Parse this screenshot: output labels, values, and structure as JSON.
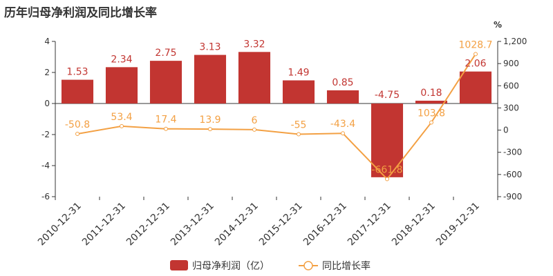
{
  "chart_data": {
    "type": "bar",
    "title": "历年归母净利润及同比增长率",
    "categories": [
      "2010-12-31",
      "2011-12-31",
      "2012-12-31",
      "2013-12-31",
      "2014-12-31",
      "2015-12-31",
      "2016-12-31",
      "2017-12-31",
      "2018-12-31",
      "2019-12-31"
    ],
    "series": [
      {
        "name": "归母净利润（亿）",
        "type": "bar",
        "axis": "left",
        "values": [
          1.53,
          2.34,
          2.75,
          3.13,
          3.32,
          1.49,
          0.85,
          -4.75,
          0.18,
          2.06
        ],
        "labels": [
          "1.53",
          "2.34",
          "2.75",
          "3.13",
          "3.32",
          "1.49",
          "0.85",
          "-4.75",
          "0.18",
          "2.06"
        ]
      },
      {
        "name": "同比增长率",
        "type": "line",
        "axis": "right",
        "values": [
          -50.8,
          53.4,
          17.4,
          13.9,
          6,
          -55,
          -43.4,
          -661.8,
          103.8,
          1028.7
        ],
        "labels": [
          "-50.8",
          "53.4",
          "17.4",
          "13.9",
          "6",
          "-55",
          "-43.4",
          "-661.8",
          "103.8",
          "1028.7"
        ]
      }
    ],
    "y_left": {
      "range": [
        -6,
        4
      ],
      "ticks": [
        "4",
        "2",
        "0",
        "-2",
        "-4",
        "-6"
      ]
    },
    "y_right": {
      "range": [
        -900,
        1200
      ],
      "unit": "%",
      "ticks": [
        "1,200",
        "900",
        "600",
        "300",
        "0",
        "-300",
        "-600",
        "-900"
      ]
    },
    "colors": {
      "bar": "#c23531",
      "line": "#f3a043"
    },
    "legend_position": "bottom"
  }
}
